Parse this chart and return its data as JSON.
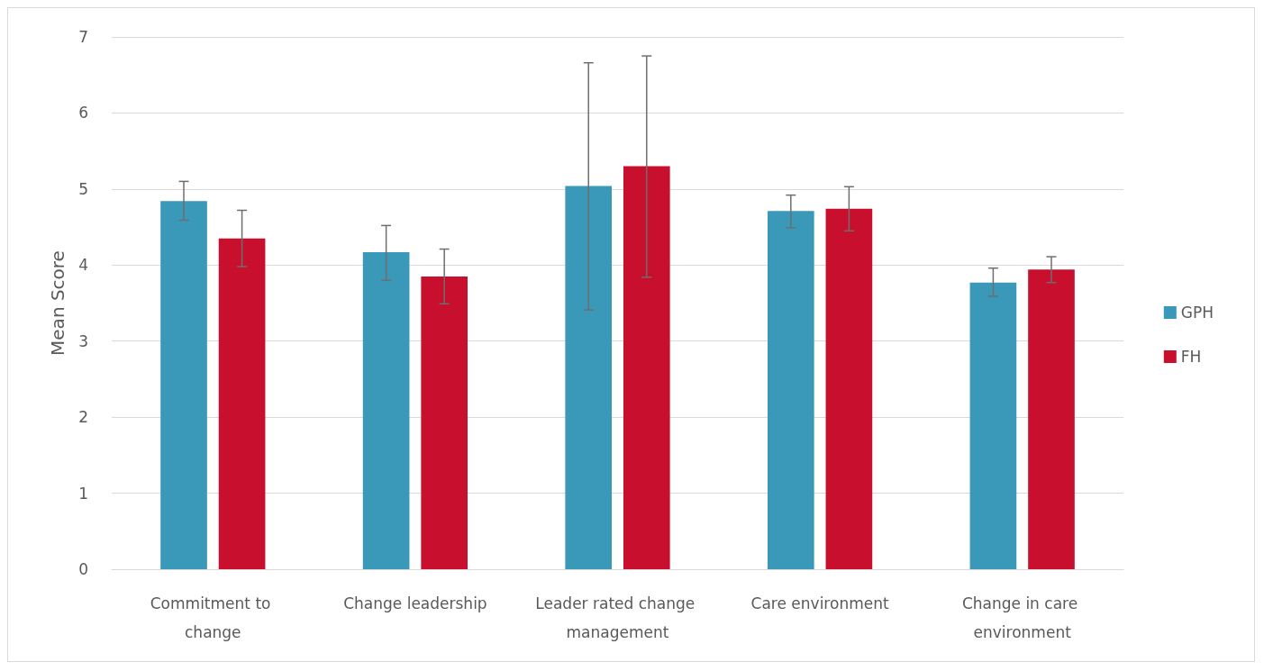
{
  "chart_data": {
    "type": "bar",
    "ylabel": "Mean Score",
    "categories": [
      "Commitment to change",
      "Change leadership",
      "Leader rated change management",
      "Care environment",
      "Change in care environment"
    ],
    "series": [
      {
        "name": "GPH",
        "color": "#3a98b8",
        "values": [
          4.84,
          4.17,
          5.04,
          4.71,
          3.77
        ],
        "errors": [
          [
            4.59,
            5.1
          ],
          [
            3.8,
            4.52
          ],
          [
            3.41,
            6.66
          ],
          [
            4.49,
            4.92
          ],
          [
            3.59,
            3.96
          ]
        ]
      },
      {
        "name": "FH",
        "color": "#c8102e",
        "values": [
          4.35,
          3.85,
          5.3,
          4.74,
          3.94
        ],
        "errors": [
          [
            3.98,
            4.72
          ],
          [
            3.49,
            4.21
          ],
          [
            3.84,
            6.75
          ],
          [
            4.45,
            5.03
          ],
          [
            3.77,
            4.11
          ]
        ]
      }
    ],
    "ylim": [
      0,
      7
    ],
    "yticks": [
      0,
      1,
      2,
      3,
      4,
      5,
      6,
      7
    ],
    "grid": "y",
    "legend": "right"
  }
}
